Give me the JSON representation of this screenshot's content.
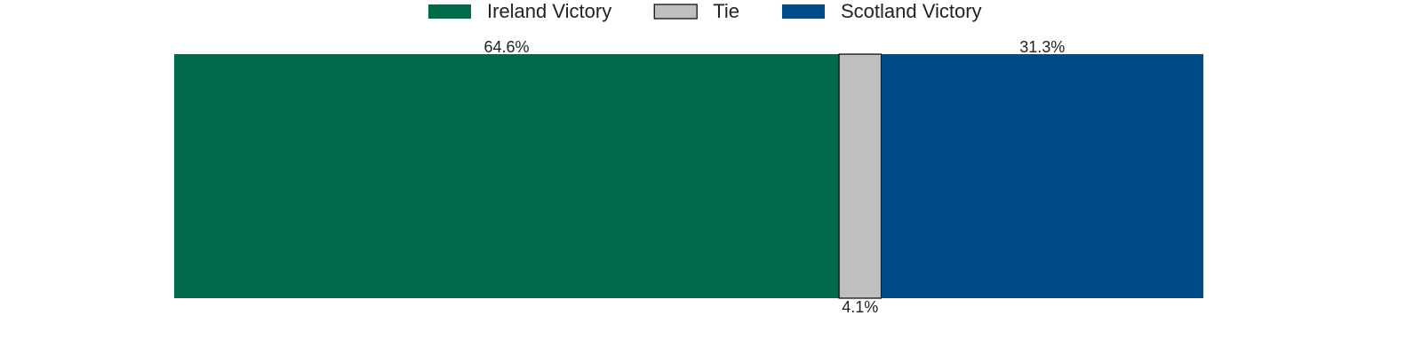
{
  "chart_data": {
    "type": "bar",
    "orientation": "horizontal",
    "stacked": true,
    "categories": [
      null
    ],
    "series": [
      {
        "name": "Ireland Victory",
        "color": "#006a4a",
        "values": [
          64.6
        ],
        "value_labels": [
          "64.6%"
        ]
      },
      {
        "name": "Tie",
        "color": "#bfbfbf",
        "edgecolor": "#000000",
        "values": [
          4.1
        ],
        "value_labels": [
          "4.1%"
        ]
      },
      {
        "name": "Scotland Victory",
        "color": "#004b87",
        "values": [
          31.3
        ],
        "value_labels": [
          "31.3%"
        ]
      }
    ],
    "legend": "top"
  }
}
